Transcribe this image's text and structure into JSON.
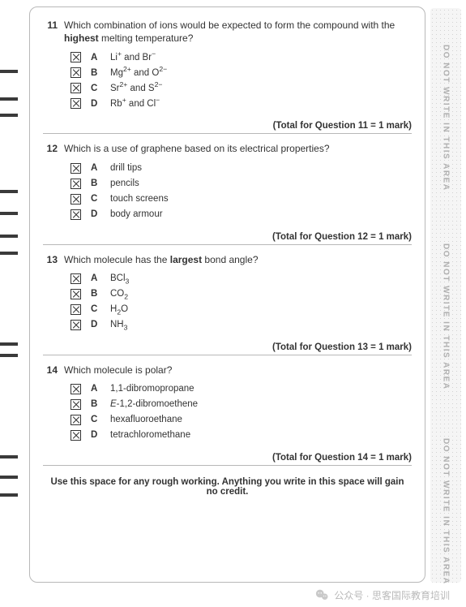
{
  "sideText": "DO NOT WRITE IN THIS AREA",
  "sidePositions": [
    45,
    290,
    530
  ],
  "marks": [
    86,
    120,
    140,
    234,
    261,
    289,
    310,
    422,
    436,
    561,
    586,
    608
  ],
  "footer": "公众号 · 思客国际教育培训",
  "roughWorking": "Use this space for any rough working. Anything you write in this space will gain no credit.",
  "questions": [
    {
      "num": "11",
      "stemParts": [
        "Which combination of ions would be expected to form the compound with the ",
        {
          "b": "highest"
        },
        " melting temperature?"
      ],
      "options": [
        {
          "letter": "A",
          "parts": [
            "Li",
            {
              "sup": "+"
            },
            " and Br",
            {
              "sup": "−"
            }
          ]
        },
        {
          "letter": "B",
          "parts": [
            "Mg",
            {
              "sup": "2+"
            },
            " and O",
            {
              "sup": "2−"
            }
          ]
        },
        {
          "letter": "C",
          "parts": [
            "Sr",
            {
              "sup": "2+"
            },
            " and S",
            {
              "sup": "2−"
            }
          ]
        },
        {
          "letter": "D",
          "parts": [
            "Rb",
            {
              "sup": "+"
            },
            " and Cl",
            {
              "sup": "−"
            }
          ]
        }
      ],
      "total": "(Total for Question 11 = 1 mark)"
    },
    {
      "num": "12",
      "stemParts": [
        "Which is a use of graphene based on its electrical properties?"
      ],
      "options": [
        {
          "letter": "A",
          "parts": [
            "drill tips"
          ]
        },
        {
          "letter": "B",
          "parts": [
            "pencils"
          ]
        },
        {
          "letter": "C",
          "parts": [
            "touch screens"
          ]
        },
        {
          "letter": "D",
          "parts": [
            "body armour"
          ]
        }
      ],
      "total": "(Total for Question 12 = 1 mark)"
    },
    {
      "num": "13",
      "stemParts": [
        "Which molecule has the ",
        {
          "b": "largest"
        },
        " bond angle?"
      ],
      "options": [
        {
          "letter": "A",
          "parts": [
            "BCl",
            {
              "sub": "3"
            }
          ]
        },
        {
          "letter": "B",
          "parts": [
            "CO",
            {
              "sub": "2"
            }
          ]
        },
        {
          "letter": "C",
          "parts": [
            "H",
            {
              "sub": "2"
            },
            "O"
          ]
        },
        {
          "letter": "D",
          "parts": [
            "NH",
            {
              "sub": "3"
            }
          ]
        }
      ],
      "total": "(Total for Question 13 = 1 mark)"
    },
    {
      "num": "14",
      "stemParts": [
        "Which molecule is polar?"
      ],
      "options": [
        {
          "letter": "A",
          "parts": [
            "1,1-dibromopropane"
          ]
        },
        {
          "letter": "B",
          "parts": [
            {
              "i": "E"
            },
            "-1,2-dibromoethene"
          ]
        },
        {
          "letter": "C",
          "parts": [
            "hexafluoroethane"
          ]
        },
        {
          "letter": "D",
          "parts": [
            "tetrachloromethane"
          ]
        }
      ],
      "total": "(Total for Question 14 = 1 mark)"
    }
  ]
}
